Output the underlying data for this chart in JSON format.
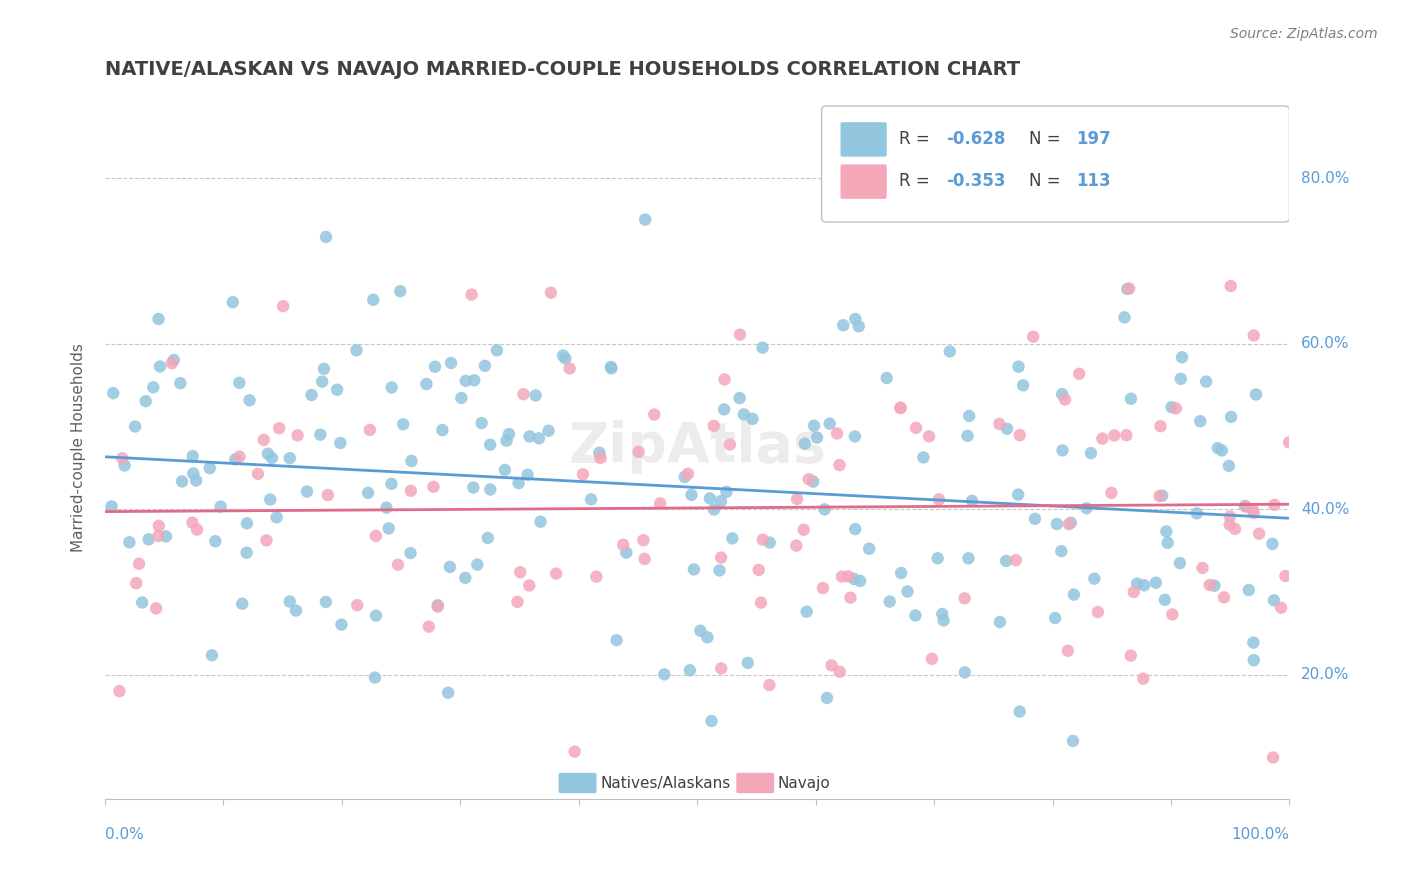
{
  "title": "NATIVE/ALASKAN VS NAVAJO MARRIED-COUPLE HOUSEHOLDS CORRELATION CHART",
  "source": "Source: ZipAtlas.com",
  "ylabel": "Married-couple Households",
  "legend_blue_label": "Natives/Alaskans",
  "legend_pink_label": "Navajo",
  "blue_R": "-0.628",
  "blue_N": "197",
  "pink_R": "-0.353",
  "pink_N": "113",
  "blue_color": "#92c5de",
  "pink_color": "#f4a7b9",
  "blue_line_color": "#5b9bd5",
  "pink_line_color": "#e06c8a",
  "background_color": "#ffffff",
  "grid_color": "#c8c8c8",
  "title_color": "#404040",
  "axis_label_color": "#5b9bd5",
  "watermark": "ZipAtlas",
  "xlim": [
    0.0,
    1.0
  ],
  "ylim": [
    0.05,
    0.9
  ]
}
